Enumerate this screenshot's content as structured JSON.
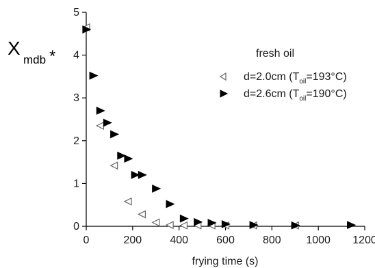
{
  "chart_data": {
    "type": "scatter",
    "title": "",
    "xlabel": "frying time (s)",
    "ylabel": {
      "main": "X",
      "subscript": "mdb",
      "superscript": "*"
    },
    "xlim": [
      0,
      1200
    ],
    "ylim": [
      0,
      5
    ],
    "xticks": [
      "0",
      "200",
      "400",
      "600",
      "800",
      "1000",
      "1200"
    ],
    "yticks": [
      "0",
      "1",
      "2",
      "3",
      "4",
      "5"
    ],
    "legend": {
      "title": "fresh oil",
      "placement": "top-right",
      "entries": [
        {
          "prefix": "d=2.0cm (T",
          "sub": "oil",
          "suffix": "=193°C)"
        },
        {
          "prefix": "d=2.6cm (T",
          "sub": "oil",
          "suffix": "=190°C)"
        }
      ]
    },
    "series": [
      {
        "marker": "open-left-triangle",
        "color": "#666666",
        "points": [
          [
            0,
            4.65
          ],
          [
            60,
            2.35
          ],
          [
            120,
            1.42
          ],
          [
            180,
            0.58
          ],
          [
            240,
            0.28
          ],
          [
            300,
            0.09
          ],
          [
            360,
            0.03
          ],
          [
            420,
            0.02
          ],
          [
            480,
            0.02
          ],
          [
            540,
            0.02
          ],
          [
            600,
            0.02
          ],
          [
            720,
            0.02
          ],
          [
            900,
            0.02
          ]
        ]
      },
      {
        "marker": "filled-right-triangle",
        "color": "#000000",
        "points": [
          [
            0,
            4.6
          ],
          [
            30,
            3.52
          ],
          [
            60,
            2.7
          ],
          [
            90,
            2.42
          ],
          [
            120,
            2.15
          ],
          [
            150,
            1.65
          ],
          [
            180,
            1.58
          ],
          [
            210,
            1.2
          ],
          [
            240,
            1.2
          ],
          [
            300,
            0.88
          ],
          [
            360,
            0.52
          ],
          [
            420,
            0.18
          ],
          [
            480,
            0.1
          ],
          [
            540,
            0.08
          ],
          [
            600,
            0.05
          ],
          [
            720,
            0.03
          ],
          [
            900,
            0.02
          ],
          [
            1140,
            0.03
          ]
        ]
      }
    ]
  }
}
